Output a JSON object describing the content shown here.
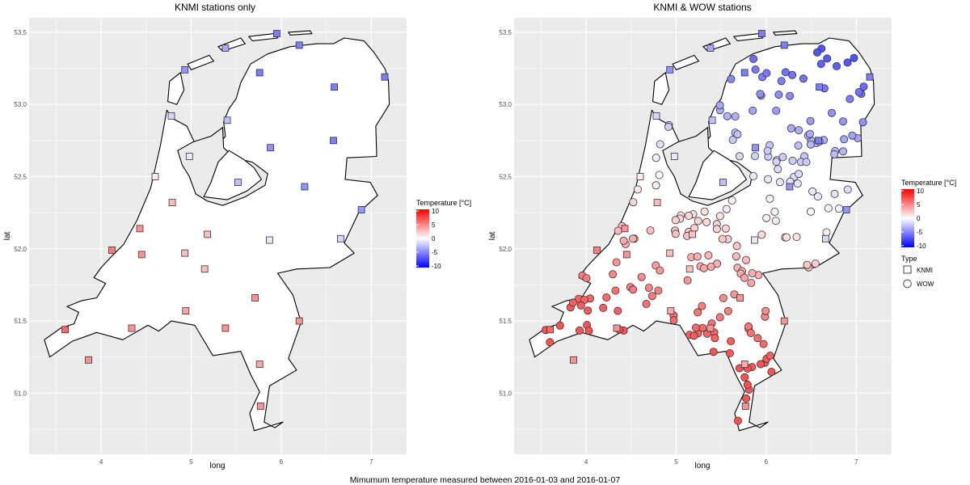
{
  "caption": "Mimumum temperature measured between 2016-01-03 and 2016-01-07",
  "axes": {
    "xlabel": "long",
    "ylabel": "lat",
    "xlim": [
      3.2,
      7.4
    ],
    "ylim": [
      50.7,
      53.6
    ],
    "xticks": [
      "4",
      "5",
      "6",
      "7"
    ],
    "yticks": [
      "51.0",
      "51.5",
      "52.0",
      "52.5",
      "53.0",
      "53.5"
    ]
  },
  "panels": [
    {
      "title": "KNMI stations only"
    },
    {
      "title": "KNMI & WOW stations"
    }
  ],
  "legend_temperature": {
    "title": "Temperature [°C]",
    "labels": [
      "10",
      "5",
      "0",
      "-5",
      "-10"
    ],
    "low_color": "#0000ff",
    "mid_color": "#ffffff",
    "high_color": "#ff0000"
  },
  "legend_type": {
    "title": "Type",
    "items": [
      "KNMI",
      "WOW"
    ]
  },
  "map_data": {
    "knmi_stations": [
      {
        "lon": 5.95,
        "lat": 53.49,
        "t": -6
      },
      {
        "lon": 5.38,
        "lat": 53.39,
        "t": -4
      },
      {
        "lon": 6.2,
        "lat": 53.41,
        "t": -6
      },
      {
        "lon": 4.93,
        "lat": 53.24,
        "t": -5
      },
      {
        "lon": 5.76,
        "lat": 53.22,
        "t": -6
      },
      {
        "lon": 7.15,
        "lat": 53.19,
        "t": -6
      },
      {
        "lon": 6.59,
        "lat": 53.12,
        "t": -6
      },
      {
        "lon": 4.78,
        "lat": 52.92,
        "t": -2
      },
      {
        "lon": 5.4,
        "lat": 52.89,
        "t": -3
      },
      {
        "lon": 5.88,
        "lat": 52.7,
        "t": -5
      },
      {
        "lon": 6.58,
        "lat": 52.75,
        "t": -6
      },
      {
        "lon": 4.98,
        "lat": 52.64,
        "t": -1
      },
      {
        "lon": 4.6,
        "lat": 52.5,
        "t": 1
      },
      {
        "lon": 5.52,
        "lat": 52.46,
        "t": -3
      },
      {
        "lon": 6.26,
        "lat": 52.43,
        "t": -5
      },
      {
        "lon": 6.89,
        "lat": 52.27,
        "t": -5
      },
      {
        "lon": 4.79,
        "lat": 52.32,
        "t": 3
      },
      {
        "lon": 4.43,
        "lat": 52.14,
        "t": 5
      },
      {
        "lon": 5.18,
        "lat": 52.1,
        "t": 3
      },
      {
        "lon": 5.87,
        "lat": 52.06,
        "t": -1
      },
      {
        "lon": 6.66,
        "lat": 52.07,
        "t": -2
      },
      {
        "lon": 4.12,
        "lat": 51.99,
        "t": 6
      },
      {
        "lon": 4.45,
        "lat": 51.96,
        "t": 5
      },
      {
        "lon": 4.93,
        "lat": 51.97,
        "t": 3
      },
      {
        "lon": 5.15,
        "lat": 51.86,
        "t": 3
      },
      {
        "lon": 5.71,
        "lat": 51.66,
        "t": 5
      },
      {
        "lon": 4.94,
        "lat": 51.57,
        "t": 4
      },
      {
        "lon": 6.2,
        "lat": 51.5,
        "t": 5
      },
      {
        "lon": 3.6,
        "lat": 51.44,
        "t": 7
      },
      {
        "lon": 4.34,
        "lat": 51.45,
        "t": 5
      },
      {
        "lon": 5.38,
        "lat": 51.45,
        "t": 5
      },
      {
        "lon": 3.86,
        "lat": 51.23,
        "t": 5
      },
      {
        "lon": 5.76,
        "lat": 51.2,
        "t": 4
      },
      {
        "lon": 5.77,
        "lat": 50.91,
        "t": 5
      }
    ]
  }
}
